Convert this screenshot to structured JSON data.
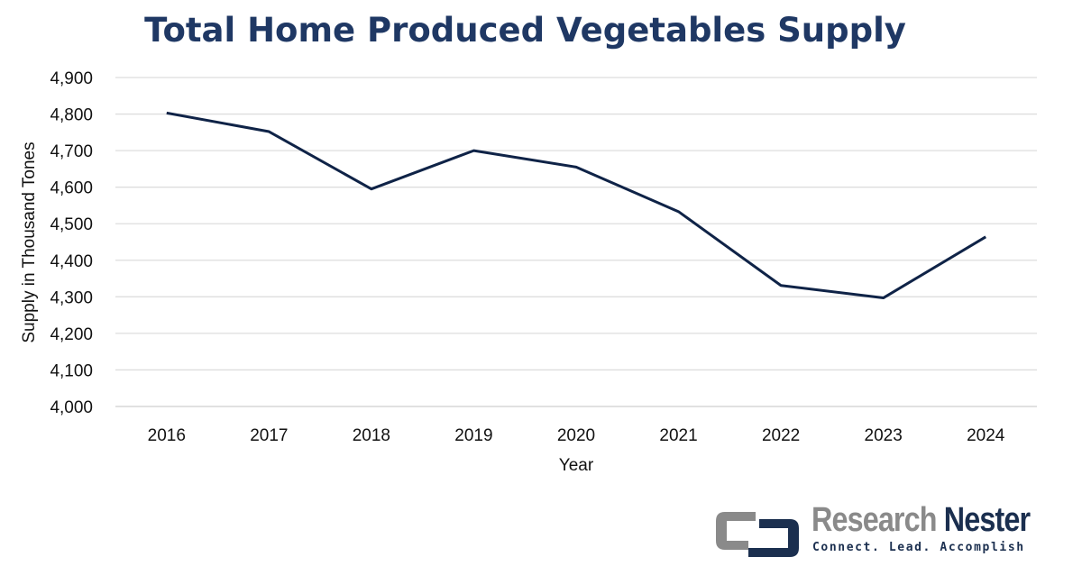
{
  "chart_data": {
    "type": "line",
    "title": "Total Home Produced Vegetables Supply",
    "xlabel": "Year",
    "ylabel": "Supply in Thousand Tones",
    "categories": [
      "2016",
      "2017",
      "2018",
      "2019",
      "2020",
      "2021",
      "2022",
      "2023",
      "2024"
    ],
    "values": [
      4803,
      4752,
      4595,
      4700,
      4655,
      4533,
      4331,
      4297,
      4464
    ],
    "ylim": [
      4000,
      4900
    ],
    "yticks": [
      4000,
      4100,
      4200,
      4300,
      4400,
      4500,
      4600,
      4700,
      4800,
      4900
    ],
    "ytick_labels": [
      "4,000",
      "4,100",
      "4,200",
      "4,300",
      "4,400",
      "4,500",
      "4,600",
      "4,700",
      "4,800",
      "4,900"
    ],
    "grid": true,
    "line_color": "#0f2347",
    "title_color": "#1f3864"
  },
  "logo": {
    "name_part1": "Research",
    "name_part2": "Nester",
    "tagline": "Connect. Lead. Accomplish"
  }
}
